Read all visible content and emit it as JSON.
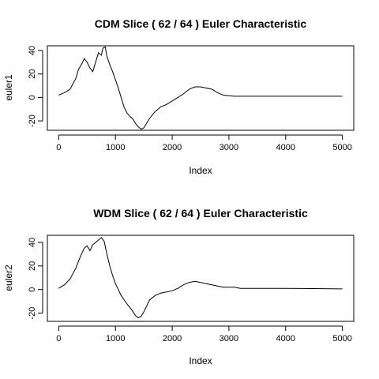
{
  "chart_data": [
    {
      "type": "line",
      "title": "CDM Slice ( 62 / 64 ) Euler Characteristic",
      "xlabel": "Index",
      "ylabel": "euler1",
      "xlim": [
        -200,
        5200
      ],
      "ylim": [
        -28,
        44
      ],
      "xticks": [
        0,
        1000,
        2000,
        3000,
        4000,
        5000
      ],
      "yticks": [
        -20,
        0,
        20,
        40
      ],
      "grid": false,
      "series": [
        {
          "values": [
            [
              0,
              2
            ],
            [
              100,
              4
            ],
            [
              200,
              7
            ],
            [
              300,
              16
            ],
            [
              350,
              24
            ],
            [
              400,
              28
            ],
            [
              450,
              33
            ],
            [
              500,
              30
            ],
            [
              550,
              25
            ],
            [
              600,
              22
            ],
            [
              650,
              30
            ],
            [
              700,
              38
            ],
            [
              750,
              36
            ],
            [
              780,
              42
            ],
            [
              820,
              43
            ],
            [
              850,
              35
            ],
            [
              900,
              28
            ],
            [
              950,
              22
            ],
            [
              1000,
              15
            ],
            [
              1050,
              8
            ],
            [
              1100,
              0
            ],
            [
              1150,
              -8
            ],
            [
              1200,
              -13
            ],
            [
              1250,
              -16
            ],
            [
              1300,
              -18
            ],
            [
              1350,
              -22
            ],
            [
              1400,
              -25
            ],
            [
              1450,
              -27
            ],
            [
              1500,
              -26
            ],
            [
              1550,
              -22
            ],
            [
              1600,
              -18
            ],
            [
              1700,
              -12
            ],
            [
              1800,
              -8
            ],
            [
              1900,
              -6
            ],
            [
              2000,
              -3
            ],
            [
              2100,
              0
            ],
            [
              2200,
              3
            ],
            [
              2300,
              7
            ],
            [
              2400,
              9
            ],
            [
              2500,
              9
            ],
            [
              2600,
              8
            ],
            [
              2700,
              7
            ],
            [
              2800,
              4
            ],
            [
              2900,
              2
            ],
            [
              3000,
              1.5
            ],
            [
              3100,
              1
            ],
            [
              4000,
              1
            ],
            [
              5000,
              1
            ]
          ]
        }
      ]
    },
    {
      "type": "line",
      "title": "WDM Slice ( 62 / 64 ) Euler Characteristic",
      "xlabel": "Index",
      "ylabel": "euler2",
      "xlim": [
        -200,
        5200
      ],
      "ylim": [
        -27,
        46
      ],
      "xticks": [
        0,
        1000,
        2000,
        3000,
        4000,
        5000
      ],
      "yticks": [
        -20,
        0,
        20,
        40
      ],
      "grid": false,
      "series": [
        {
          "values": [
            [
              0,
              1
            ],
            [
              100,
              4
            ],
            [
              200,
              9
            ],
            [
              300,
              18
            ],
            [
              350,
              24
            ],
            [
              400,
              30
            ],
            [
              450,
              35
            ],
            [
              500,
              37
            ],
            [
              550,
              33
            ],
            [
              600,
              38
            ],
            [
              650,
              40
            ],
            [
              700,
              42
            ],
            [
              750,
              44
            ],
            [
              800,
              41
            ],
            [
              850,
              30
            ],
            [
              900,
              20
            ],
            [
              950,
              12
            ],
            [
              1000,
              5
            ],
            [
              1100,
              -5
            ],
            [
              1200,
              -12
            ],
            [
              1300,
              -18
            ],
            [
              1350,
              -22
            ],
            [
              1400,
              -24
            ],
            [
              1450,
              -23
            ],
            [
              1500,
              -19
            ],
            [
              1550,
              -14
            ],
            [
              1600,
              -9
            ],
            [
              1700,
              -5
            ],
            [
              1800,
              -3
            ],
            [
              1900,
              -2
            ],
            [
              2000,
              -1
            ],
            [
              2100,
              1
            ],
            [
              2200,
              4
            ],
            [
              2300,
              6
            ],
            [
              2400,
              7
            ],
            [
              2500,
              6
            ],
            [
              2600,
              5
            ],
            [
              2700,
              4
            ],
            [
              2800,
              3
            ],
            [
              2900,
              2
            ],
            [
              3100,
              2
            ],
            [
              3200,
              1
            ],
            [
              4000,
              1
            ],
            [
              5000,
              0.5
            ]
          ]
        }
      ]
    }
  ]
}
